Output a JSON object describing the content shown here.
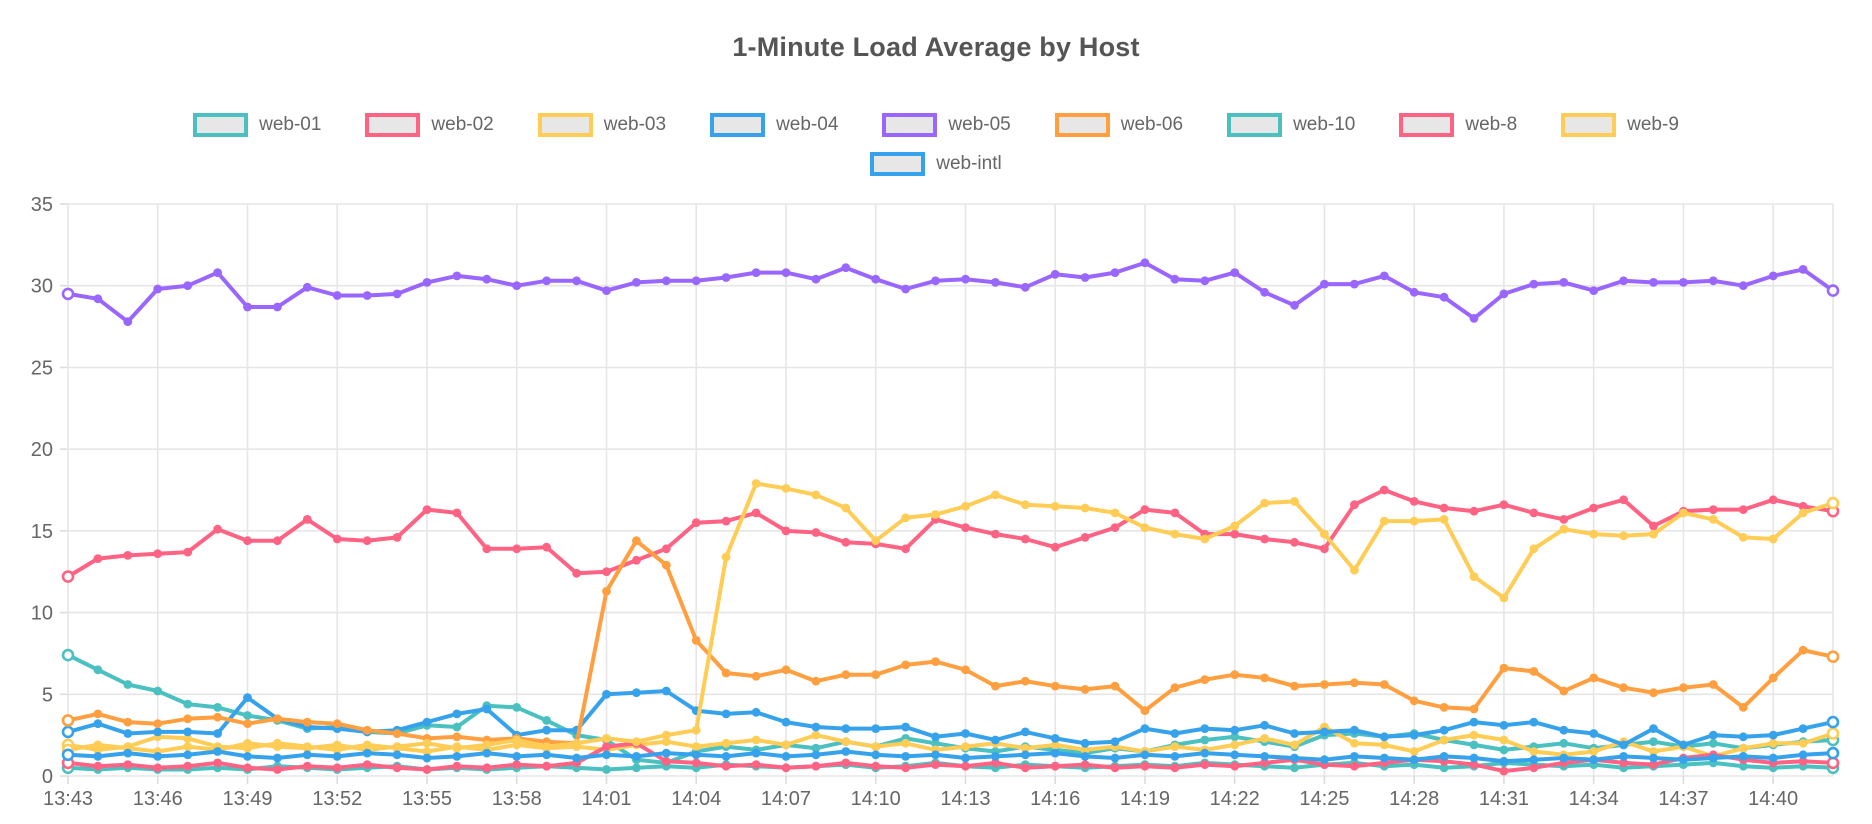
{
  "chart_data": {
    "type": "line",
    "title": "1-Minute Load Average by Host",
    "xlabel": "",
    "ylabel": "",
    "ylim": [
      0,
      35
    ],
    "y_ticks": [
      0,
      5,
      10,
      15,
      20,
      25,
      30,
      35
    ],
    "x_tick_every": 3,
    "grid": true,
    "legend_position": "top",
    "x": [
      "13:43",
      "13:44",
      "13:45",
      "13:46",
      "13:47",
      "13:48",
      "13:49",
      "13:50",
      "13:51",
      "13:52",
      "13:53",
      "13:54",
      "13:55",
      "13:56",
      "13:57",
      "13:58",
      "13:59",
      "14:00",
      "14:01",
      "14:02",
      "14:03",
      "14:04",
      "14:05",
      "14:06",
      "14:07",
      "14:08",
      "14:09",
      "14:10",
      "14:11",
      "14:12",
      "14:13",
      "14:14",
      "14:15",
      "14:16",
      "14:17",
      "14:18",
      "14:19",
      "14:20",
      "14:21",
      "14:22",
      "14:23",
      "14:24",
      "14:25",
      "14:26",
      "14:27",
      "14:28",
      "14:29",
      "14:30",
      "14:31",
      "14:32",
      "14:33",
      "14:34",
      "14:35",
      "14:36",
      "14:37",
      "14:38",
      "14:39",
      "14:40",
      "14:41",
      "14:42"
    ],
    "legend_rows": [
      [
        "web-01",
        "web-02",
        "web-03",
        "web-04",
        "web-05",
        "web-06",
        "web-10",
        "web-8",
        "web-9"
      ],
      [
        "web-intl"
      ]
    ],
    "series": [
      {
        "name": "web-01",
        "color": "#4BC0C0",
        "values": [
          7.4,
          6.5,
          5.6,
          5.2,
          4.4,
          4.2,
          3.7,
          3.4,
          2.9,
          3.0,
          2.7,
          2.6,
          3.1,
          3.0,
          4.3,
          4.2,
          3.4,
          2.5,
          2.2,
          1.0,
          0.8,
          1.5,
          1.8,
          1.6,
          1.9,
          1.7,
          2.1,
          1.8,
          2.3,
          2.0,
          1.7,
          1.5,
          1.8,
          1.6,
          1.4,
          1.7,
          1.5,
          1.9,
          2.2,
          2.4,
          2.1,
          1.8,
          2.5,
          2.6,
          2.4,
          2.6,
          2.2,
          1.9,
          1.6,
          1.8,
          2.0,
          1.7,
          1.9,
          2.1,
          1.8,
          2.0,
          1.7,
          1.9,
          2.1,
          2.2
        ]
      },
      {
        "name": "web-02",
        "color": "#FF6384",
        "values": [
          12.2,
          13.3,
          13.5,
          13.6,
          13.7,
          15.1,
          14.4,
          14.4,
          15.7,
          14.5,
          14.4,
          14.6,
          16.3,
          16.1,
          13.9,
          13.9,
          14.0,
          12.4,
          12.5,
          13.2,
          13.9,
          15.5,
          15.6,
          16.1,
          15.0,
          14.9,
          14.3,
          14.2,
          13.9,
          15.7,
          15.2,
          14.8,
          14.5,
          14.0,
          14.6,
          15.2,
          16.3,
          16.1,
          14.8,
          14.8,
          14.5,
          14.3,
          13.9,
          16.6,
          17.5,
          16.8,
          16.4,
          16.2,
          16.6,
          16.1,
          15.7,
          16.4,
          16.9,
          15.3,
          16.2,
          16.3,
          16.3,
          16.9,
          16.5,
          16.2
        ]
      },
      {
        "name": "web-03",
        "color": "#FFCD56",
        "values": [
          1.9,
          1.6,
          1.8,
          2.4,
          2.3,
          1.8,
          1.7,
          2.0,
          1.8,
          1.6,
          1.9,
          1.7,
          1.5,
          1.8,
          1.6,
          1.9,
          1.7,
          1.8,
          1.6,
          1.9,
          2.1,
          1.8,
          2.0,
          2.2,
          1.9,
          2.5,
          2.1,
          1.8,
          2.0,
          1.6,
          1.8,
          2.0,
          1.7,
          1.9,
          1.6,
          1.8,
          1.5,
          1.8,
          1.6,
          1.9,
          2.3,
          1.9,
          3.0,
          2.0,
          1.9,
          1.5,
          2.2,
          2.5,
          2.2,
          1.5,
          1.3,
          1.5,
          2.1,
          1.5,
          1.8,
          1.2,
          1.7,
          2.0,
          2.0,
          2.6
        ]
      },
      {
        "name": "web-04",
        "color": "#36A2EB",
        "values": [
          2.7,
          3.2,
          2.6,
          2.7,
          2.7,
          2.6,
          4.8,
          3.5,
          3.0,
          2.9,
          2.7,
          2.8,
          3.3,
          3.8,
          4.1,
          2.5,
          2.8,
          2.8,
          5.0,
          5.1,
          5.2,
          4.0,
          3.8,
          3.9,
          3.3,
          3.0,
          2.9,
          2.9,
          3.0,
          2.4,
          2.6,
          2.2,
          2.7,
          2.3,
          2.0,
          2.1,
          2.9,
          2.6,
          2.9,
          2.8,
          3.1,
          2.6,
          2.7,
          2.8,
          2.4,
          2.5,
          2.8,
          3.3,
          3.1,
          3.3,
          2.8,
          2.6,
          1.9,
          2.9,
          1.9,
          2.5,
          2.4,
          2.5,
          2.9,
          3.3
        ]
      },
      {
        "name": "web-05",
        "color": "#9966FF",
        "values": [
          29.5,
          29.2,
          27.8,
          29.8,
          30.0,
          30.8,
          28.7,
          28.7,
          29.9,
          29.4,
          29.4,
          29.5,
          30.2,
          30.6,
          30.4,
          30.0,
          30.3,
          30.3,
          29.7,
          30.2,
          30.3,
          30.3,
          30.5,
          30.8,
          30.8,
          30.4,
          31.1,
          30.4,
          29.8,
          30.3,
          30.4,
          30.2,
          29.9,
          30.7,
          30.5,
          30.8,
          31.4,
          30.4,
          30.3,
          30.8,
          29.6,
          28.8,
          30.1,
          30.1,
          30.6,
          29.6,
          29.3,
          28.0,
          29.5,
          30.1,
          30.2,
          29.7,
          30.3,
          30.2,
          30.2,
          30.3,
          30.0,
          30.6,
          31.0,
          29.7
        ]
      },
      {
        "name": "web-06",
        "color": "#FF9F40",
        "values": [
          3.4,
          3.8,
          3.3,
          3.2,
          3.5,
          3.6,
          3.2,
          3.5,
          3.3,
          3.2,
          2.8,
          2.6,
          2.3,
          2.4,
          2.2,
          2.3,
          2.1,
          2.0,
          11.3,
          14.4,
          12.9,
          8.3,
          6.3,
          6.1,
          6.5,
          5.8,
          6.2,
          6.2,
          6.8,
          7.0,
          6.5,
          5.5,
          5.8,
          5.5,
          5.3,
          5.5,
          4.0,
          5.4,
          5.9,
          6.2,
          6.0,
          5.5,
          5.6,
          5.7,
          5.6,
          4.6,
          4.2,
          4.1,
          6.6,
          6.4,
          5.2,
          6.0,
          5.4,
          5.1,
          5.4,
          5.6,
          4.2,
          6.0,
          7.7,
          7.3
        ]
      },
      {
        "name": "web-10",
        "color": "#4BC0C0",
        "values": [
          0.5,
          0.4,
          0.5,
          0.4,
          0.4,
          0.5,
          0.4,
          0.6,
          0.5,
          0.4,
          0.5,
          0.6,
          0.4,
          0.5,
          0.4,
          0.5,
          0.6,
          0.5,
          0.4,
          0.5,
          0.6,
          0.5,
          0.7,
          0.6,
          0.5,
          0.6,
          0.7,
          0.5,
          0.6,
          0.8,
          0.6,
          0.5,
          0.7,
          0.6,
          0.5,
          0.6,
          0.7,
          0.6,
          0.8,
          0.7,
          0.6,
          0.5,
          0.7,
          0.8,
          0.6,
          0.7,
          0.5,
          0.6,
          0.8,
          0.7,
          0.6,
          0.7,
          0.5,
          0.6,
          0.7,
          0.8,
          0.6,
          0.5,
          0.6,
          0.5
        ]
      },
      {
        "name": "web-8",
        "color": "#FF6384",
        "values": [
          0.8,
          0.6,
          0.7,
          0.5,
          0.6,
          0.8,
          0.5,
          0.4,
          0.6,
          0.5,
          0.7,
          0.5,
          0.4,
          0.6,
          0.5,
          0.7,
          0.6,
          0.8,
          1.8,
          2.0,
          0.9,
          0.8,
          0.6,
          0.7,
          0.5,
          0.6,
          0.8,
          0.6,
          0.5,
          0.7,
          0.6,
          0.8,
          0.5,
          0.6,
          0.7,
          0.5,
          0.6,
          0.5,
          0.7,
          0.6,
          0.8,
          1.0,
          0.7,
          0.6,
          0.8,
          1.0,
          0.9,
          0.7,
          0.3,
          0.5,
          0.8,
          1.0,
          0.8,
          0.7,
          1.1,
          1.3,
          1.0,
          0.8,
          0.9,
          0.8
        ]
      },
      {
        "name": "web-9",
        "color": "#FFCD56",
        "values": [
          1.6,
          1.9,
          1.7,
          1.5,
          1.8,
          1.6,
          2.0,
          1.8,
          1.7,
          1.9,
          1.6,
          1.8,
          2.0,
          1.7,
          1.9,
          2.2,
          1.8,
          2.0,
          2.3,
          2.1,
          2.5,
          2.8,
          13.4,
          17.9,
          17.6,
          17.2,
          16.4,
          14.4,
          15.8,
          16.0,
          16.5,
          17.2,
          16.6,
          16.5,
          16.4,
          16.1,
          15.2,
          14.8,
          14.5,
          15.3,
          16.7,
          16.8,
          14.8,
          12.6,
          15.6,
          15.6,
          15.7,
          12.2,
          10.9,
          13.9,
          15.1,
          14.8,
          14.7,
          14.8,
          16.1,
          15.7,
          14.6,
          14.5,
          16.1,
          16.7
        ]
      },
      {
        "name": "web-intl",
        "color": "#36A2EB",
        "values": [
          1.3,
          1.2,
          1.4,
          1.2,
          1.3,
          1.5,
          1.2,
          1.1,
          1.3,
          1.2,
          1.4,
          1.3,
          1.1,
          1.2,
          1.4,
          1.2,
          1.3,
          1.1,
          1.3,
          1.2,
          1.4,
          1.3,
          1.2,
          1.4,
          1.2,
          1.3,
          1.5,
          1.3,
          1.2,
          1.3,
          1.1,
          1.2,
          1.3,
          1.4,
          1.2,
          1.1,
          1.3,
          1.2,
          1.4,
          1.3,
          1.2,
          1.1,
          1.0,
          1.2,
          1.1,
          1.0,
          1.2,
          1.1,
          0.9,
          1.0,
          1.1,
          1.0,
          1.2,
          1.1,
          1.0,
          1.1,
          1.2,
          1.1,
          1.3,
          1.4
        ]
      }
    ],
    "style": {
      "grid_color": "#e6e6e6",
      "axis_color": "#dcdcdc",
      "tick_text_color": "#666666",
      "title_color": "#555555",
      "legend_text_color": "#666666",
      "legend_swatch_fill": "#e7e7e7",
      "background": "#ffffff"
    }
  }
}
